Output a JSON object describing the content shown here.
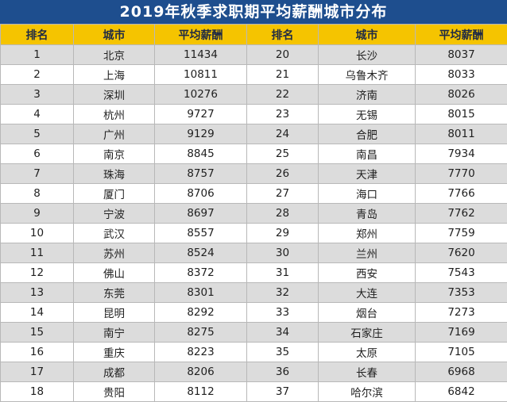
{
  "title": "2019年秋季求职期平均薪酬城市分布",
  "headers": [
    "排名",
    "城市",
    "平均薪酬",
    "排名",
    "城市",
    "平均薪酬"
  ],
  "left": [
    [
      "1",
      "北京",
      "11434"
    ],
    [
      "2",
      "上海",
      "10811"
    ],
    [
      "3",
      "深圳",
      "10276"
    ],
    [
      "4",
      "杭州",
      "9727"
    ],
    [
      "5",
      "广州",
      "9129"
    ],
    [
      "6",
      "南京",
      "8845"
    ],
    [
      "7",
      "珠海",
      "8757"
    ],
    [
      "8",
      "厦门",
      "8706"
    ],
    [
      "9",
      "宁波",
      "8697"
    ],
    [
      "10",
      "武汉",
      "8557"
    ],
    [
      "11",
      "苏州",
      "8524"
    ],
    [
      "12",
      "佛山",
      "8372"
    ],
    [
      "13",
      "东莞",
      "8301"
    ],
    [
      "14",
      "昆明",
      "8292"
    ],
    [
      "15",
      "南宁",
      "8275"
    ],
    [
      "16",
      "重庆",
      "8223"
    ],
    [
      "17",
      "成都",
      "8206"
    ],
    [
      "18",
      "贵阳",
      "8112"
    ]
  ],
  "right": [
    [
      "20",
      "长沙",
      "8037"
    ],
    [
      "21",
      "乌鲁木齐",
      "8033"
    ],
    [
      "22",
      "济南",
      "8026"
    ],
    [
      "23",
      "无锡",
      "8015"
    ],
    [
      "24",
      "合肥",
      "8011"
    ],
    [
      "25",
      "南昌",
      "7934"
    ],
    [
      "26",
      "天津",
      "7770"
    ],
    [
      "27",
      "海口",
      "7766"
    ],
    [
      "28",
      "青岛",
      "7762"
    ],
    [
      "29",
      "郑州",
      "7759"
    ],
    [
      "30",
      "兰州",
      "7620"
    ],
    [
      "31",
      "西安",
      "7543"
    ],
    [
      "32",
      "大连",
      "7353"
    ],
    [
      "33",
      "烟台",
      "7273"
    ],
    [
      "34",
      "石家庄",
      "7169"
    ],
    [
      "35",
      "太原",
      "7105"
    ],
    [
      "36",
      "长春",
      "6968"
    ],
    [
      "37",
      "哈尔滨",
      "6842"
    ]
  ]
}
